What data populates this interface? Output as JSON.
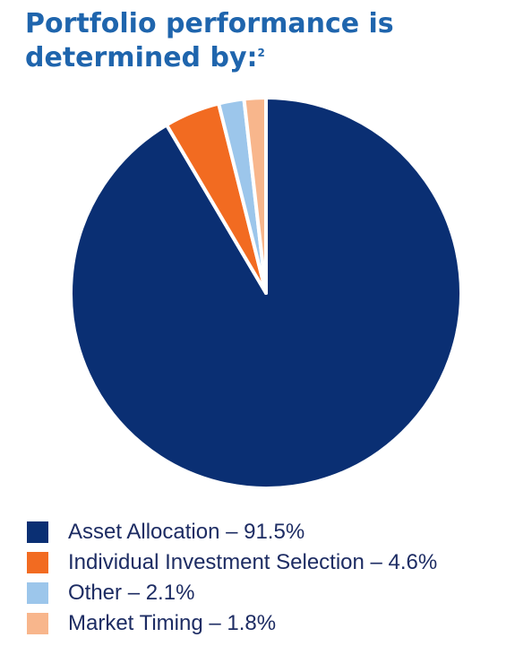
{
  "chart_data": {
    "type": "pie",
    "title": "Portfolio performance is determined by:",
    "title_footnote": "2",
    "slices": [
      {
        "label": "Asset Allocation",
        "value": 91.5,
        "color": "#0a2f73"
      },
      {
        "label": "Individual Investment Selection",
        "value": 4.6,
        "color": "#f26b21"
      },
      {
        "label": "Other",
        "value": 2.1,
        "color": "#9cc6eb"
      },
      {
        "label": "Market Timing",
        "value": 1.8,
        "color": "#f8b68c"
      }
    ],
    "legend": [
      {
        "text": "Asset Allocation – 91.5%",
        "color": "#0a2f73"
      },
      {
        "text": "Individual Investment Selection – 4.6%",
        "color": "#f26b21"
      },
      {
        "text": "Other – 2.1%",
        "color": "#9cc6eb"
      },
      {
        "text": "Market Timing – 1.8%",
        "color": "#f8b68c"
      }
    ],
    "legend_position": "bottom-left"
  }
}
